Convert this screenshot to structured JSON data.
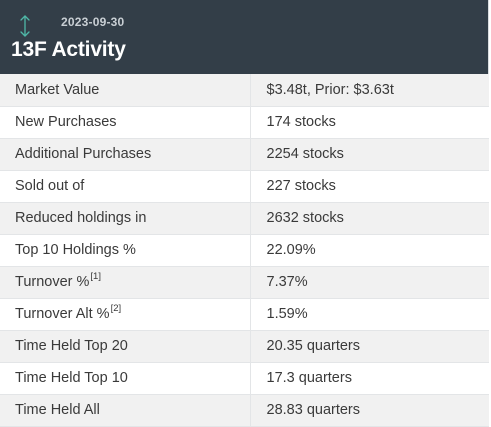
{
  "header": {
    "date": "2023-09-30",
    "title": "13F Activity",
    "icon": "sort-arrows-icon",
    "background_color": "#333e48",
    "icon_color": "#4fb8a8"
  },
  "rows": [
    {
      "label": "Market Value",
      "sup": "",
      "value": "$3.48t, Prior: $3.63t"
    },
    {
      "label": "New Purchases",
      "sup": "",
      "value": "174 stocks"
    },
    {
      "label": "Additional Purchases",
      "sup": "",
      "value": "2254 stocks"
    },
    {
      "label": "Sold out of",
      "sup": "",
      "value": "227 stocks"
    },
    {
      "label": "Reduced holdings in",
      "sup": "",
      "value": "2632 stocks"
    },
    {
      "label": "Top 10 Holdings %",
      "sup": "",
      "value": "22.09%"
    },
    {
      "label": "Turnover %",
      "sup": "[1]",
      "value": "7.37%"
    },
    {
      "label": "Turnover Alt %",
      "sup": "[2]",
      "value": "1.59%"
    },
    {
      "label": "Time Held Top 20",
      "sup": "",
      "value": "20.35 quarters"
    },
    {
      "label": "Time Held Top 10",
      "sup": "",
      "value": "17.3 quarters"
    },
    {
      "label": "Time Held All",
      "sup": "",
      "value": "28.83 quarters"
    }
  ]
}
